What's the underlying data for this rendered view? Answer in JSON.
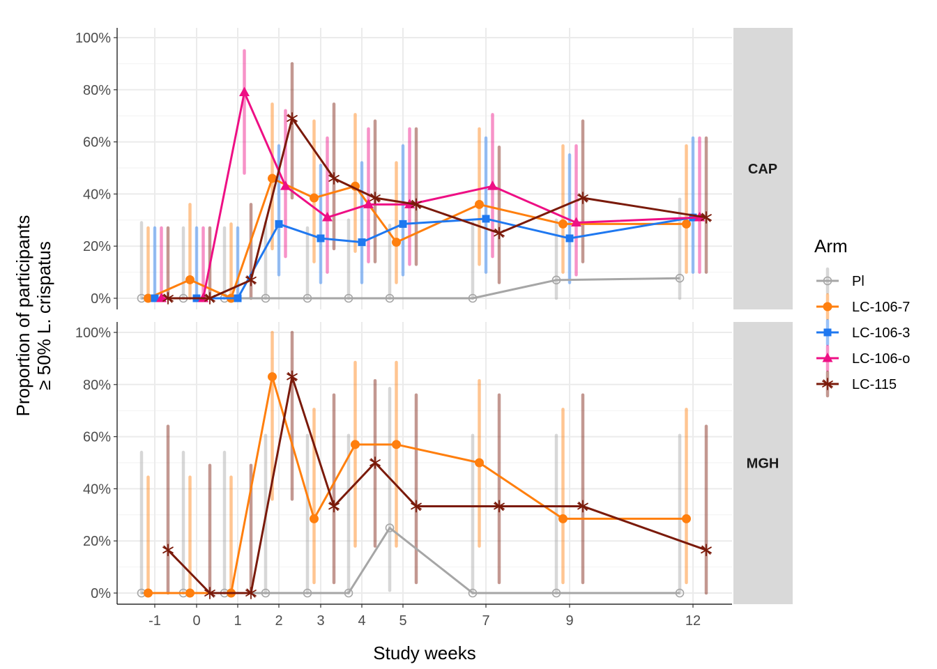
{
  "chart_data": {
    "type": "line",
    "xlabel": "Study weeks",
    "ylabel_line1": "Proportion of participants",
    "ylabel_line2": "≥ 50% L. crispatus",
    "x_ticks": [
      "-1",
      "0",
      "1",
      "2",
      "3",
      "4",
      "5",
      "7",
      "9",
      "12"
    ],
    "y_ticks": [
      "0%",
      "20%",
      "40%",
      "60%",
      "80%",
      "100%"
    ],
    "ylim": [
      0,
      100
    ],
    "legend": {
      "title": "Arm",
      "placement": "right",
      "entries": [
        {
          "name": "Pl",
          "color": "#A6A6A6",
          "shape": "open-circle"
        },
        {
          "name": "LC-106-7",
          "color": "#FF7F0E",
          "shape": "circle"
        },
        {
          "name": "LC-106-3",
          "color": "#1F78F0",
          "shape": "square"
        },
        {
          "name": "LC-106-o",
          "color": "#EE0F84",
          "shape": "triangle"
        },
        {
          "name": "LC-115",
          "color": "#7A1A0A",
          "shape": "asterisk"
        }
      ]
    },
    "panels": [
      {
        "label": "CAP",
        "series": [
          {
            "name": "Pl",
            "x": [
              -1,
              0,
              1,
              2,
              3,
              4,
              5,
              7,
              9,
              12
            ],
            "y": [
              0,
              0,
              0,
              0,
              0,
              0,
              0,
              0,
              7,
              7.7
            ],
            "lo": [
              0,
              0,
              0,
              0,
              0,
              0,
              0,
              0,
              0,
              0
            ],
            "hi": [
              29,
              27,
              27,
              29,
              27,
              30,
              28,
              29,
              30,
              38
            ]
          },
          {
            "name": "LC-106-7",
            "x": [
              -1,
              0,
              1,
              2,
              3,
              4,
              5,
              7,
              9,
              12
            ],
            "y": [
              0,
              7.1,
              0,
              46,
              38.5,
              43,
              21.5,
              36,
              28.5,
              28.5
            ],
            "lo": [
              0,
              0,
              0,
              19,
              14,
              18,
              6,
              13,
              10,
              10
            ],
            "hi": [
              27,
              36,
              28.5,
              74.5,
              68,
              70.5,
              52,
              65,
              58.5,
              58.5
            ]
          },
          {
            "name": "LC-106-3",
            "x": [
              -1,
              0,
              1,
              2,
              3,
              4,
              5,
              7,
              9,
              12
            ],
            "y": [
              0,
              0,
              0,
              28.5,
              23,
              21.5,
              28.5,
              30.5,
              23,
              31
            ],
            "lo": [
              0,
              0,
              0,
              9,
              6,
              6,
              9,
              10,
              6,
              10
            ],
            "hi": [
              27,
              27,
              27,
              58.5,
              51,
              52,
              58.5,
              61.5,
              55,
              61.5
            ]
          },
          {
            "name": "LC-106-o",
            "x": [
              -1,
              0,
              1,
              2,
              3,
              4,
              5,
              7,
              9,
              12
            ],
            "y": [
              0,
              0,
              79,
              43,
              31,
              36,
              36,
              43,
              29,
              31
            ],
            "lo": [
              0,
              0,
              48,
              16,
              10,
              14,
              13,
              16,
              9,
              10
            ],
            "hi": [
              27,
              27,
              95,
              72,
              61.5,
              65,
              65,
              70.5,
              58.5,
              61.5
            ]
          },
          {
            "name": "LC-115",
            "x": [
              -1,
              0,
              1,
              2,
              3,
              4,
              5,
              7,
              9,
              12
            ],
            "y": [
              0,
              0,
              7,
              69,
              46,
              38.5,
              36,
              25,
              38.5,
              31
            ],
            "lo": [
              0,
              0,
              0,
              38.5,
              19,
              14,
              13,
              6,
              14,
              10
            ],
            "hi": [
              27,
              27,
              36,
              90,
              74.5,
              68,
              65,
              58,
              68,
              61.5
            ]
          }
        ]
      },
      {
        "label": "MGH",
        "series": [
          {
            "name": "Pl",
            "x": [
              -1,
              0,
              1,
              2,
              3,
              4,
              5,
              7,
              9,
              12
            ],
            "y": [
              0,
              0,
              0,
              0,
              0,
              0,
              25,
              0,
              0,
              0
            ],
            "lo": [
              0,
              0,
              0,
              0,
              0,
              0,
              1,
              0,
              0,
              0
            ],
            "hi": [
              54,
              54,
              54,
              60.5,
              60.5,
              60.5,
              78.5,
              60.5,
              60.5,
              60.5
            ]
          },
          {
            "name": "LC-106-7",
            "x": [
              -1,
              0,
              1,
              2,
              3,
              4,
              5,
              7,
              9,
              12
            ],
            "y": [
              0,
              0,
              0,
              83,
              28.5,
              57,
              57,
              50,
              28.5,
              28.5
            ],
            "lo": [
              0,
              0,
              0,
              36,
              4,
              18,
              18,
              18,
              4,
              4
            ],
            "hi": [
              44.5,
              44.5,
              44.5,
              100,
              70.5,
              88.5,
              88.5,
              81.5,
              70.5,
              70.5
            ]
          },
          {
            "name": "LC-115",
            "x": [
              -1,
              0,
              1,
              2,
              3,
              4,
              5,
              7,
              9,
              12
            ],
            "y": [
              16.5,
              0,
              0,
              83,
              33.3,
              50,
              33.3,
              33.3,
              33.3,
              16.5
            ],
            "lo": [
              0,
              0,
              0,
              36,
              4,
              18,
              4,
              4,
              4,
              0
            ],
            "hi": [
              64,
              49,
              49,
              100,
              76,
              81.5,
              76,
              76,
              76,
              64
            ]
          }
        ]
      }
    ]
  }
}
